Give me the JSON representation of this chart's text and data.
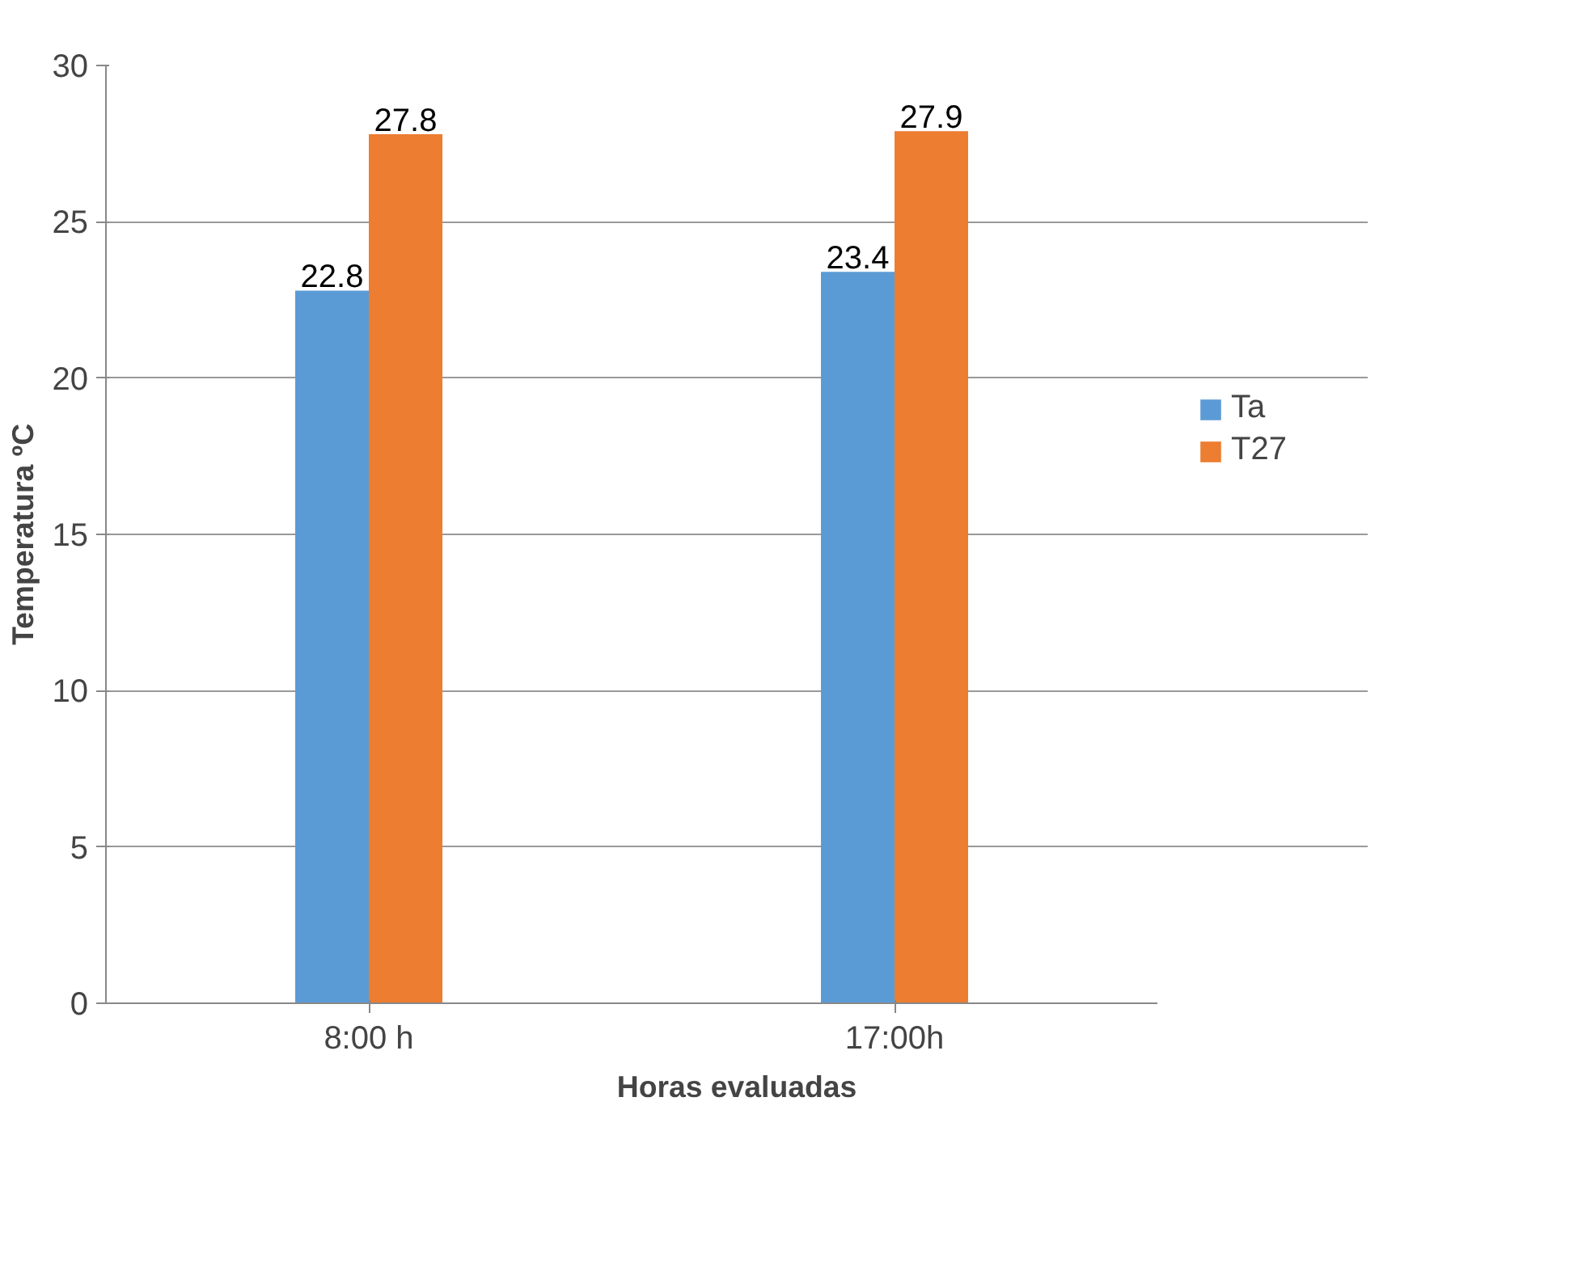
{
  "chart_data": {
    "type": "bar",
    "xlabel": "Horas evaluadas",
    "ylabel": "Temperatura ºC",
    "categories": [
      "8:00 h",
      "17:00h"
    ],
    "series": [
      {
        "name": "Ta",
        "color": "#5b9bd5",
        "values": [
          22.8,
          23.4
        ]
      },
      {
        "name": "T27",
        "color": "#ed7d31",
        "values": [
          27.8,
          27.9
        ]
      }
    ],
    "ylim": [
      0,
      30
    ],
    "yticks": [
      0,
      5,
      10,
      15,
      20,
      25,
      30
    ],
    "grid": "y",
    "legend": "right",
    "data_labels": true
  }
}
